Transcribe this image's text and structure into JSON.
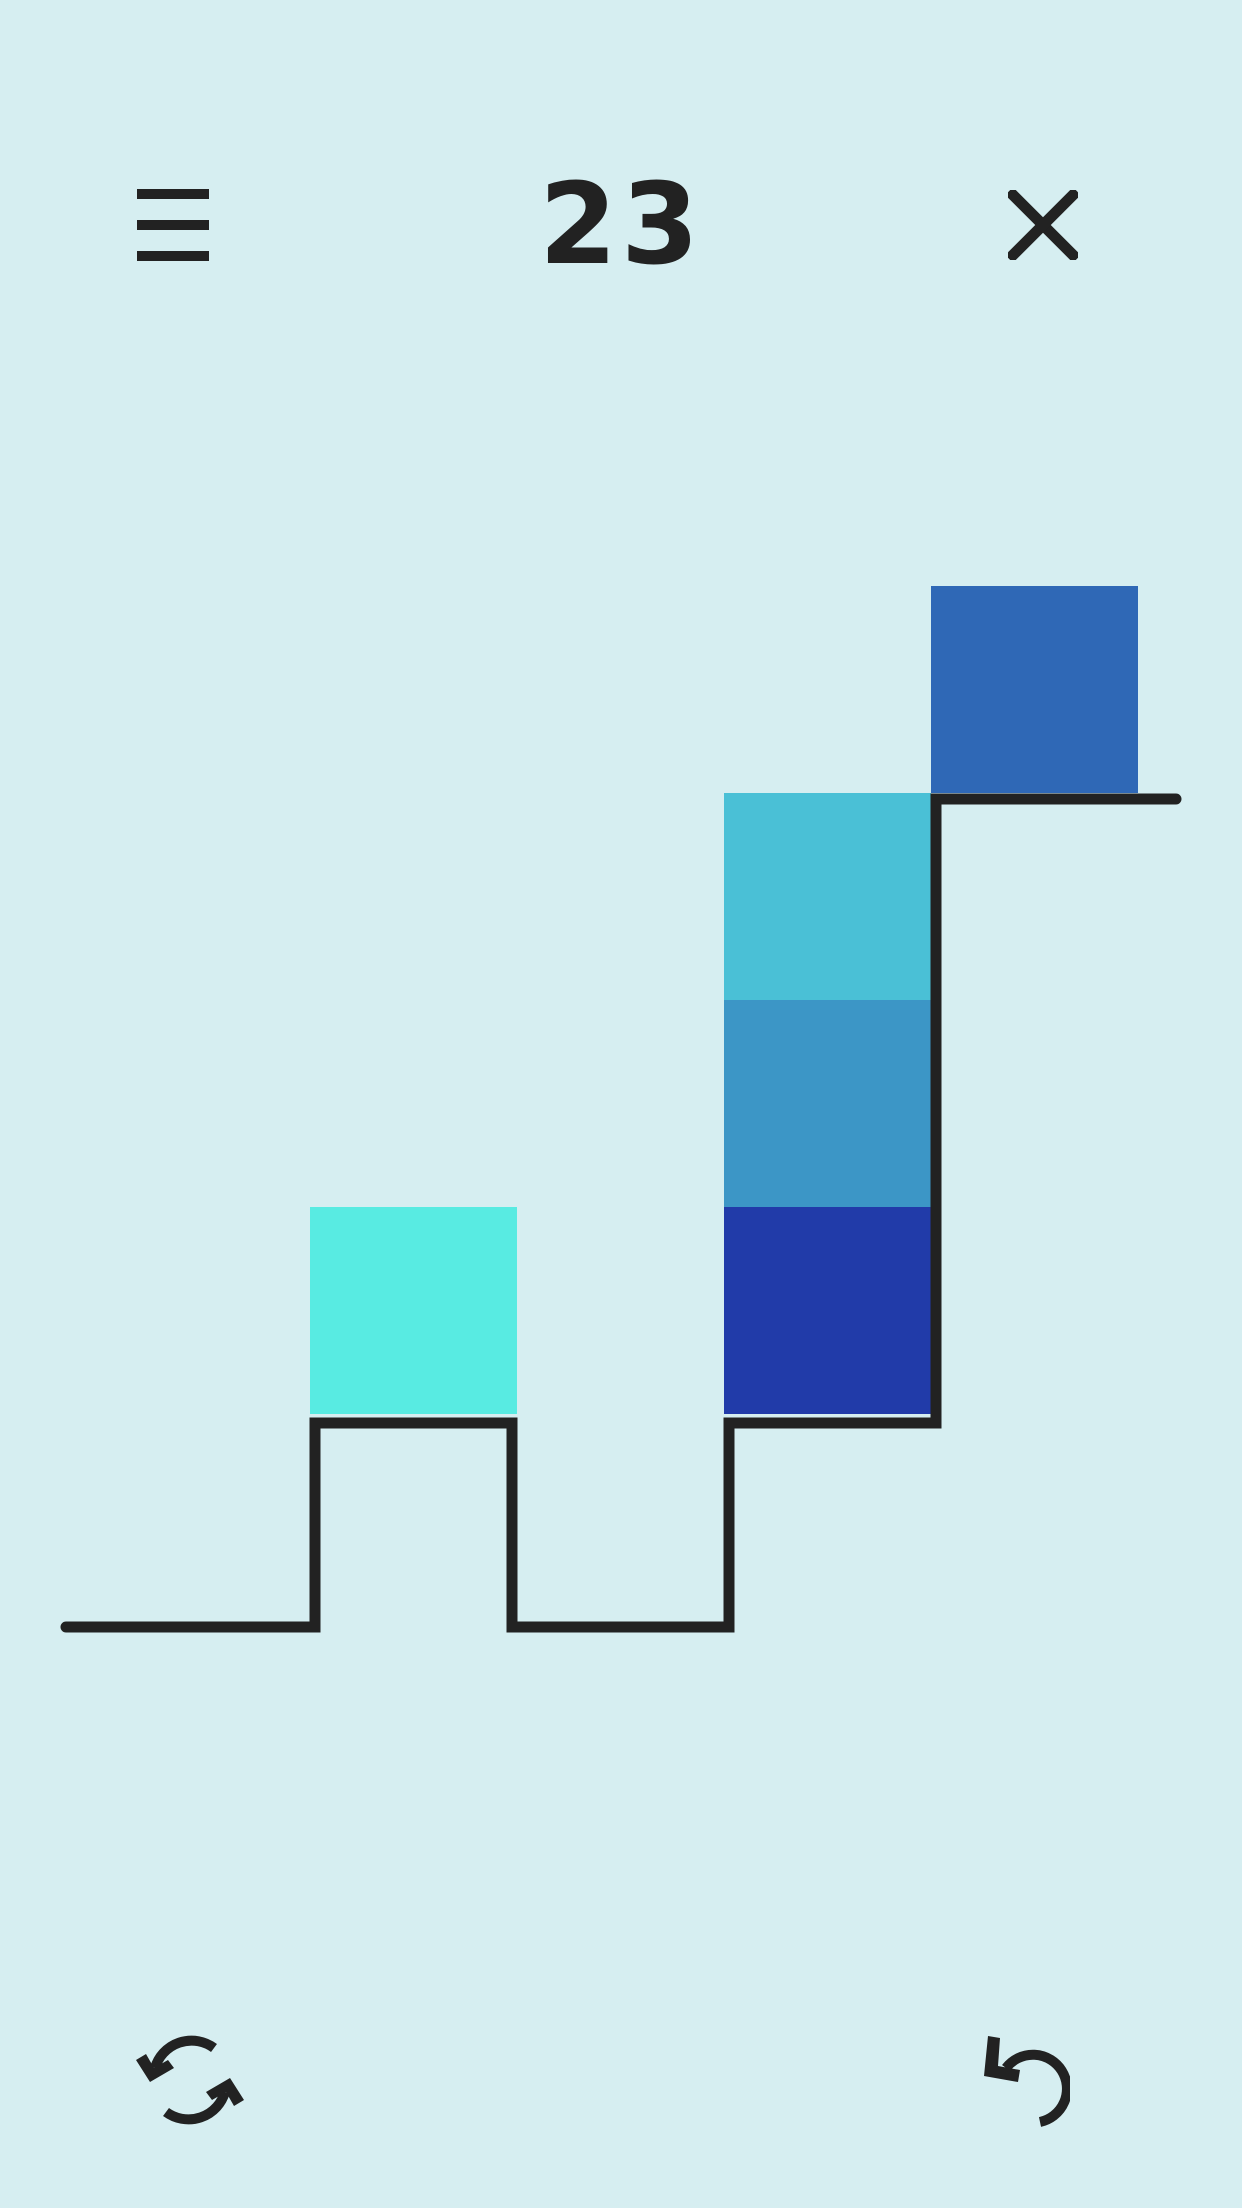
{
  "header": {
    "level": "23",
    "menu_icon": "hamburger-menu-icon",
    "close_icon": "close-icon"
  },
  "board": {
    "grid_size": "207px cells",
    "colors": {
      "background": "#d6eef1",
      "outline": "#222222",
      "turquoise": "#58ebe2",
      "sky": "#4ac0d6",
      "steel": "#3c96c6",
      "royal": "#2f68b6",
      "navy": "#213ba9"
    },
    "blocks": [
      {
        "name": "turquoise-block",
        "color": "#58ebe2",
        "col": 1,
        "row": 0
      },
      {
        "name": "navy-block",
        "color": "#213ba9",
        "col": 3,
        "row": 1
      },
      {
        "name": "steel-block",
        "color": "#3c96c6",
        "col": 3,
        "row": 2
      },
      {
        "name": "sky-block",
        "color": "#4ac0d6",
        "col": 3,
        "row": 3
      },
      {
        "name": "royal-block",
        "color": "#2f68b6",
        "col": 4,
        "row": 4
      }
    ]
  },
  "footer": {
    "restart_icon": "restart-icon",
    "undo_icon": "undo-icon"
  }
}
